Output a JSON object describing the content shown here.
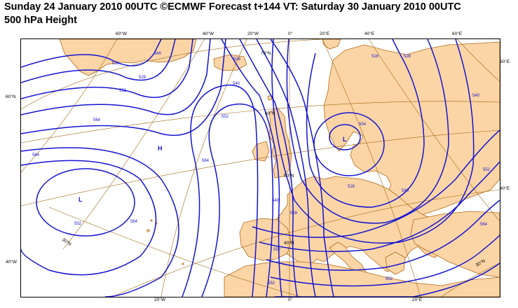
{
  "title": {
    "line1": "Sunday 24 January 2010 00UTC ©ECMWF Forecast t+144 VT: Saturday 30 January 2010 00UTC",
    "line2": "500 hPa Height"
  },
  "colors": {
    "land": "#fcd5a6",
    "sea": "#ffffff",
    "coast": "#b06a1a",
    "contour": "#1414d2",
    "graticule": "#a06a14"
  },
  "map": {
    "top_labels": [
      "60°W",
      "40°W",
      "20°W",
      "0°",
      "20°E",
      "40°E",
      "60°E"
    ],
    "bottom_labels": [
      "20°W",
      "0°",
      "20°E"
    ],
    "left_labels": [
      "60°N",
      "40°W"
    ],
    "right_labels": [
      "60°E",
      "40°E"
    ],
    "lat_labels": [
      "70°N",
      "60°N",
      "50°N",
      "40°N",
      "30°N",
      "30°N"
    ],
    "contour_labels": [
      "516",
      "528",
      "540",
      "552",
      "564",
      "564",
      "552",
      "528",
      "540",
      "564",
      "552",
      "540",
      "528",
      "516",
      "504",
      "516",
      "528",
      "540",
      "552",
      "564",
      "552",
      "552",
      "564",
      "540",
      "552"
    ],
    "pressure_centers": [
      {
        "symbol": "H"
      },
      {
        "symbol": "L"
      },
      {
        "symbol": "L"
      }
    ]
  }
}
